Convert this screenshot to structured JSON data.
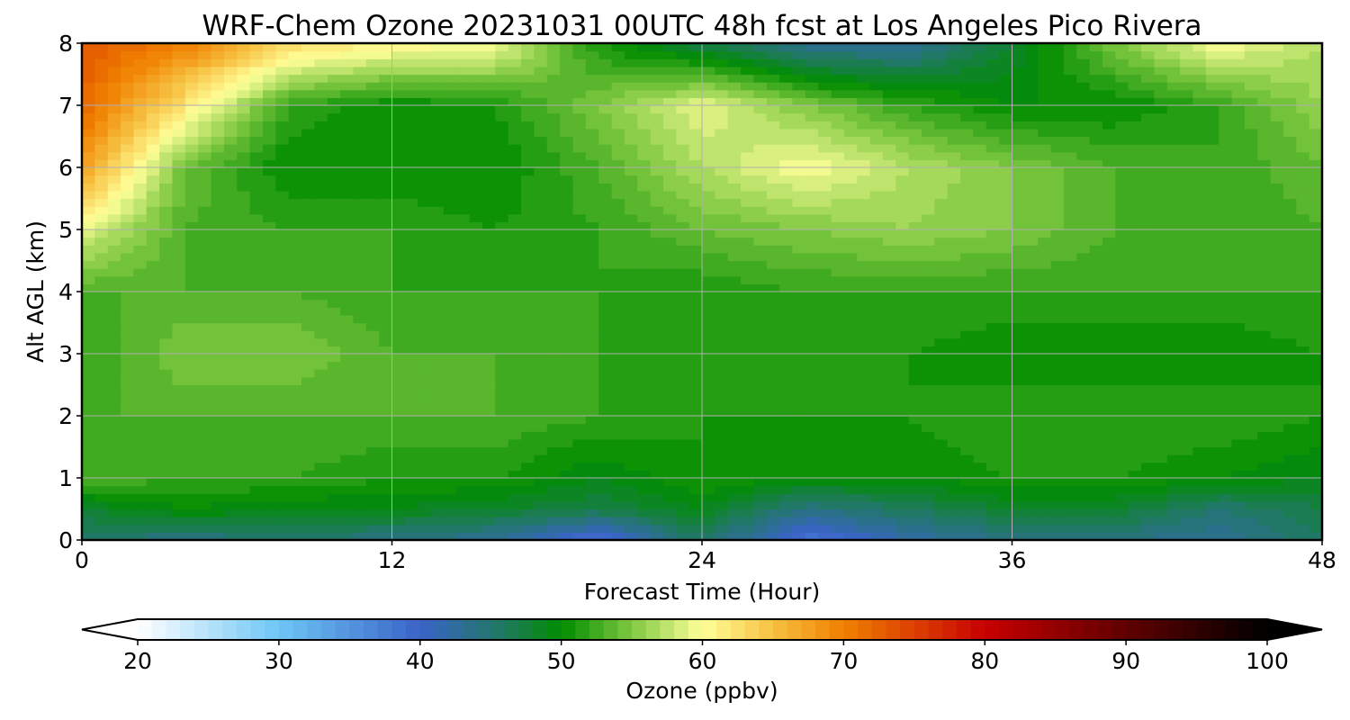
{
  "chart_data": {
    "type": "heatmap",
    "title": "WRF-Chem Ozone  20231031 00UTC 48h fcst at Los Angeles Pico Rivera",
    "xlabel": "Forecast Time (Hour)",
    "ylabel": "Alt AGL (km)",
    "xlim": [
      0,
      48
    ],
    "ylim": [
      0,
      8
    ],
    "xticks": [
      0,
      12,
      24,
      36,
      48
    ],
    "yticks": [
      0,
      1,
      2,
      3,
      4,
      5,
      6,
      7,
      8
    ],
    "grid": true,
    "colorbar": {
      "label": "Ozone  (ppbv)",
      "range": [
        20,
        100
      ],
      "ticks": [
        20,
        30,
        40,
        50,
        60,
        70,
        80,
        90,
        100
      ],
      "extend": "both",
      "stops": [
        {
          "value": 20,
          "color": "#ffffff"
        },
        {
          "value": 30,
          "color": "#6ec6f5"
        },
        {
          "value": 40,
          "color": "#3a63c8"
        },
        {
          "value": 46,
          "color": "#1f7a5e"
        },
        {
          "value": 50,
          "color": "#008c00"
        },
        {
          "value": 55,
          "color": "#7fc840"
        },
        {
          "value": 60,
          "color": "#ffff99"
        },
        {
          "value": 65,
          "color": "#f7c040"
        },
        {
          "value": 70,
          "color": "#f08000"
        },
        {
          "value": 80,
          "color": "#c80000"
        },
        {
          "value": 90,
          "color": "#600000"
        },
        {
          "value": 100,
          "color": "#000000"
        }
      ],
      "under_color": "#ffffff",
      "over_color": "#000000"
    },
    "x": [
      0,
      4,
      8,
      12,
      16,
      20,
      24,
      28,
      32,
      36,
      40,
      44,
      48
    ],
    "y": [
      0,
      0.5,
      1,
      2,
      3,
      4,
      5,
      6,
      7,
      8
    ],
    "z": [
      [
        45,
        44,
        45,
        44,
        43,
        38,
        46,
        38,
        42,
        44,
        44,
        43,
        46
      ],
      [
        48,
        50,
        49,
        49,
        48,
        47,
        49,
        44,
        46,
        48,
        48,
        45,
        47
      ],
      [
        53,
        52,
        52,
        51,
        51,
        49,
        51,
        50,
        50,
        51,
        51,
        50,
        49
      ],
      [
        53,
        53,
        53,
        53,
        53,
        52,
        51,
        51,
        51,
        52,
        52,
        52,
        51
      ],
      [
        52,
        55,
        55,
        53,
        53,
        52,
        51,
        51,
        51,
        50,
        50,
        50,
        51
      ],
      [
        53,
        53,
        53,
        52,
        52,
        52,
        51,
        52,
        52,
        52,
        52,
        52,
        52
      ],
      [
        59,
        53,
        52,
        52,
        51,
        52,
        54,
        55,
        56,
        55,
        53,
        52,
        53
      ],
      [
        68,
        54,
        50,
        50,
        50,
        53,
        57,
        60,
        57,
        55,
        53,
        52,
        54
      ],
      [
        72,
        62,
        52,
        50,
        51,
        55,
        59,
        55,
        52,
        50,
        50,
        52,
        56
      ],
      [
        73,
        70,
        63,
        61,
        60,
        51,
        47,
        43,
        43,
        48,
        55,
        60,
        57
      ]
    ]
  }
}
